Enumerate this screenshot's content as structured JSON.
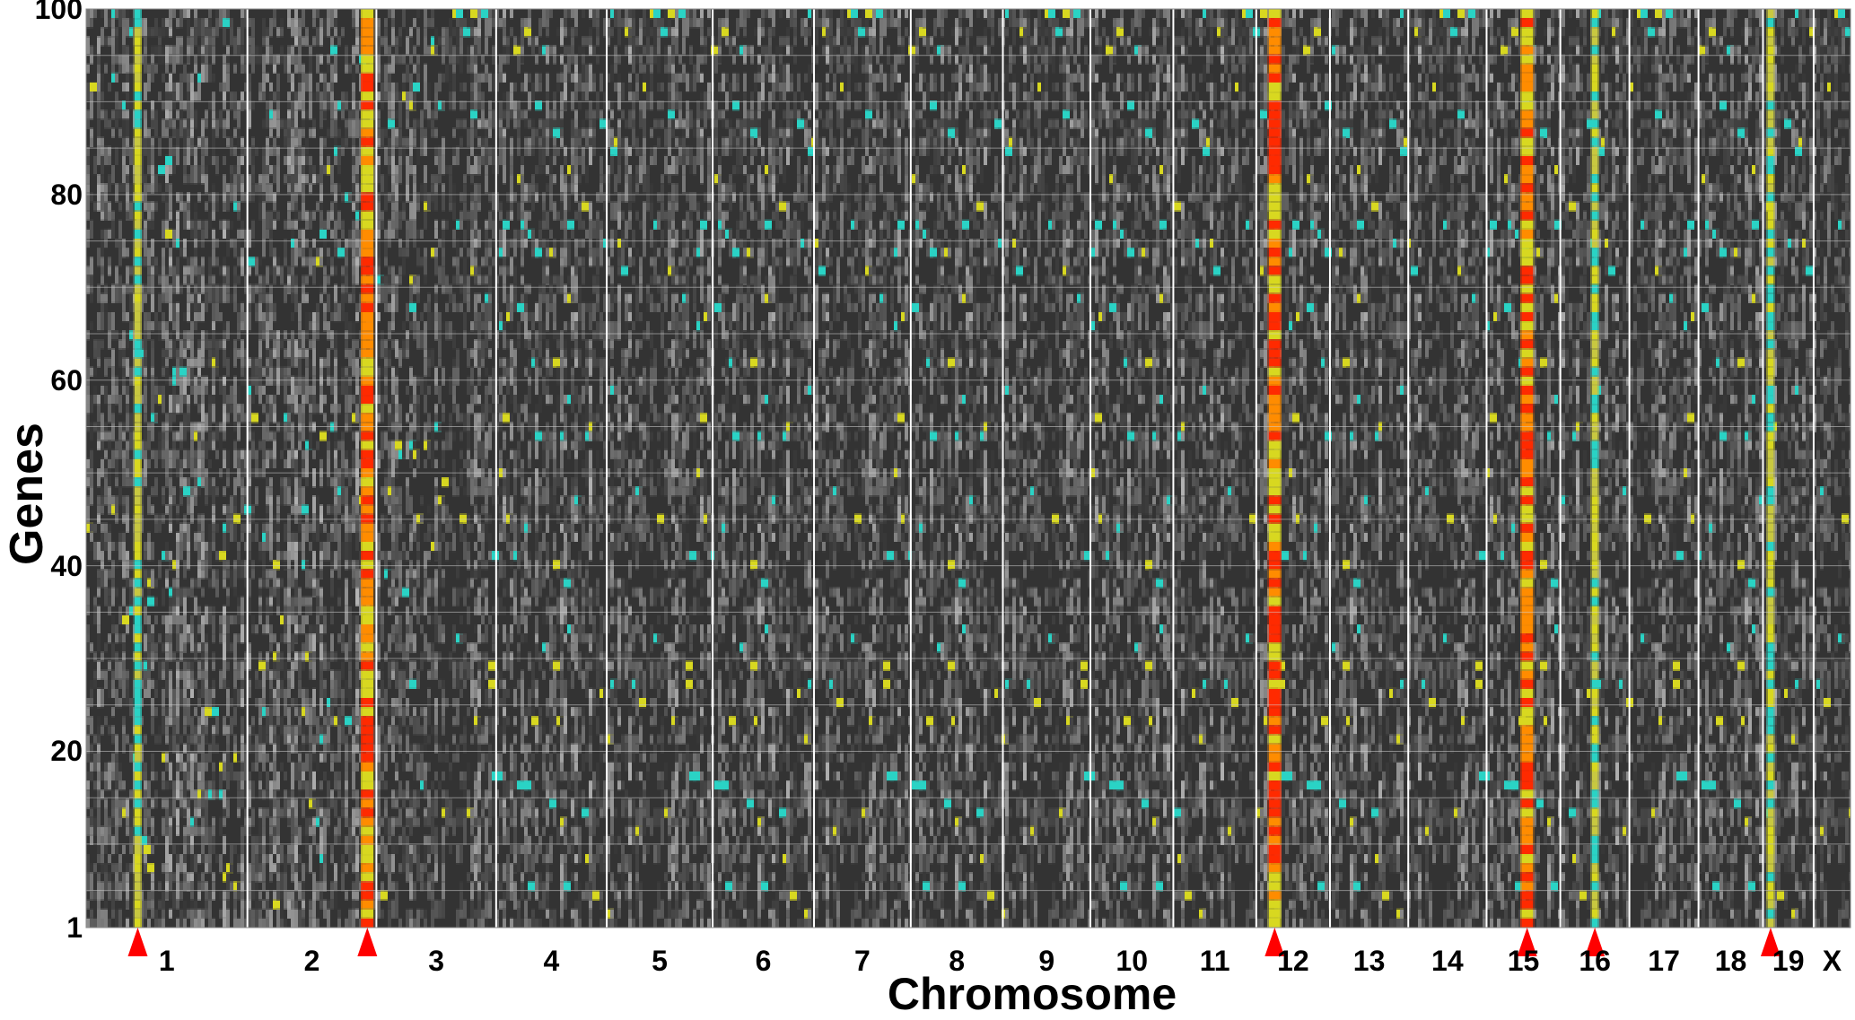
{
  "chart_data": {
    "type": "heatmap",
    "title": "",
    "xlabel": "Chromosome",
    "ylabel": "Genes",
    "y_ticks": [
      "1",
      "20",
      "40",
      "60",
      "80",
      "100"
    ],
    "y_range": [
      1,
      100
    ],
    "chromosomes": [
      "1",
      "2",
      "3",
      "4",
      "5",
      "6",
      "7",
      "8",
      "9",
      "10",
      "11",
      "12",
      "13",
      "14",
      "15",
      "16",
      "17",
      "18",
      "19",
      "X"
    ],
    "chromosome_relative_widths": [
      1.75,
      1.4,
      1.3,
      1.2,
      1.15,
      1.1,
      1.05,
      1.0,
      0.95,
      0.9,
      0.9,
      0.8,
      0.85,
      0.85,
      0.8,
      0.75,
      0.75,
      0.7,
      0.55,
      0.4
    ],
    "hotspots": [
      {
        "chromosome": "1",
        "position": 0.32,
        "intensity": "medium"
      },
      {
        "chromosome": "2",
        "position": 0.93,
        "intensity": "high"
      },
      {
        "chromosome": "12",
        "position": 0.25,
        "intensity": "high"
      },
      {
        "chromosome": "15",
        "position": 0.55,
        "intensity": "high"
      },
      {
        "chromosome": "16",
        "position": 0.5,
        "intensity": "medium"
      },
      {
        "chromosome": "19",
        "position": 0.15,
        "intensity": "medium"
      }
    ],
    "arrow_markers": [
      "1",
      "2",
      "12",
      "15",
      "16",
      "19"
    ],
    "colors": {
      "background": "#333333",
      "low": "#2ad3c5",
      "mid": "#d8d820",
      "high": "#ff2a00",
      "arrow": "#ff0000",
      "grid": "#d0d0d0"
    },
    "grid": true
  }
}
